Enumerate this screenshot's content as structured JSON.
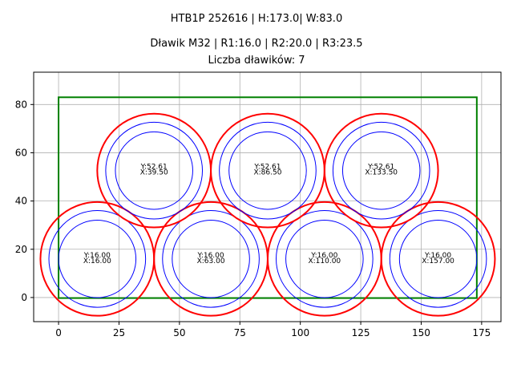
{
  "titles": {
    "line1": "HTB1P 252616 | H:173.0| W:83.0",
    "line2": "Dławik M32 | R1:16.0 | R2:20.0 | R3:23.5",
    "line3": "Liczba dławików: 7"
  },
  "colors": {
    "rect": "#008000",
    "outer": "#ff0000",
    "inner": "#0000ff",
    "grid": "#b0b0b0"
  },
  "chart_data": {
    "type": "scatter",
    "title": "HTB1P 252616 | H:173.0| W:83.0 / Dławik M32 | R1:16.0 | R2:20.0 | R3:23.5 / Liczba dławików: 7",
    "xlabel": "",
    "ylabel": "",
    "xlim": [
      -10.3,
      183
    ],
    "ylim": [
      -10,
      93.4
    ],
    "grid": true,
    "xticks": [
      0,
      25,
      50,
      75,
      100,
      125,
      150,
      175
    ],
    "yticks": [
      0,
      20,
      40,
      60,
      80
    ],
    "rectangle": {
      "x": 0,
      "y": 0,
      "width": 173.0,
      "height": 83.0,
      "color": "green"
    },
    "radii": {
      "R1": 16.0,
      "R2": 20.0,
      "R3": 23.5
    },
    "circles": [
      {
        "x": 16.0,
        "y": 16.0,
        "label_x": "X:16.00",
        "label_y": "Y:16.00"
      },
      {
        "x": 63.0,
        "y": 16.0,
        "label_x": "X:63.00",
        "label_y": "Y:16.00"
      },
      {
        "x": 110.0,
        "y": 16.0,
        "label_x": "X:110.00",
        "label_y": "Y:16.00"
      },
      {
        "x": 157.0,
        "y": 16.0,
        "label_x": "X:157.00",
        "label_y": "Y:16.00"
      },
      {
        "x": 39.5,
        "y": 52.61,
        "label_x": "X:39.50",
        "label_y": "Y:52.61"
      },
      {
        "x": 86.5,
        "y": 52.61,
        "label_x": "X:86.50",
        "label_y": "Y:52.61"
      },
      {
        "x": 133.5,
        "y": 52.61,
        "label_x": "X:133.50",
        "label_y": "Y:52.61"
      }
    ]
  }
}
